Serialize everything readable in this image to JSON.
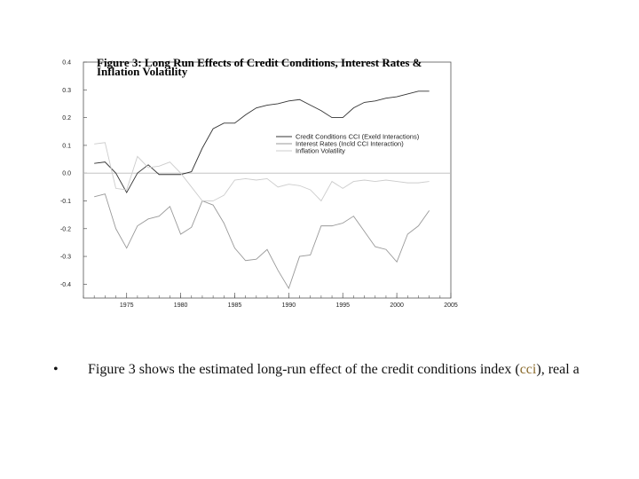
{
  "chart_data": {
    "type": "line",
    "title_lines": [
      "Figure 3: Long Run Effects of Credit Conditions, Interest Rates &",
      "Inflation Volatility"
    ],
    "xlabel": "",
    "ylabel": "",
    "xlim": [
      1971,
      2005
    ],
    "ylim": [
      -0.45,
      0.4
    ],
    "xticks": [
      1975,
      1980,
      1985,
      1990,
      1995,
      2000,
      2005
    ],
    "yticks": [
      0.4,
      0.3,
      0.2,
      0.1,
      0.0,
      -0.1,
      -0.2,
      -0.3,
      -0.4
    ],
    "ytick_labels": [
      "0.4",
      "0.3",
      "0.2",
      "0.1",
      "0.0",
      "-0.1",
      "-0.2",
      "-0.3",
      "-0.4"
    ],
    "zero_line": true,
    "legend_position": "right",
    "x": [
      1972,
      1973,
      1974,
      1975,
      1976,
      1977,
      1978,
      1979,
      1980,
      1981,
      1982,
      1983,
      1984,
      1985,
      1986,
      1987,
      1988,
      1989,
      1990,
      1991,
      1992,
      1993,
      1994,
      1995,
      1996,
      1997,
      1998,
      1999,
      2000,
      2001,
      2002,
      2003
    ],
    "series": [
      {
        "name": "Credit Conditions CCI (Exeld Interactions)",
        "color": "#333333",
        "values": [
          0.035,
          0.04,
          0.0,
          -0.07,
          0.0,
          0.03,
          -0.005,
          -0.005,
          -0.005,
          0.005,
          0.09,
          0.16,
          0.18,
          0.18,
          0.21,
          0.235,
          0.245,
          0.25,
          0.26,
          0.265,
          0.245,
          0.225,
          0.2,
          0.2,
          0.235,
          0.255,
          0.26,
          0.27,
          0.275,
          0.285,
          0.295,
          0.295
        ]
      },
      {
        "name": "Interest Rates (Incld CCI Interaction)",
        "color": "#999999",
        "values": [
          -0.085,
          -0.075,
          -0.2,
          -0.27,
          -0.19,
          -0.165,
          -0.155,
          -0.12,
          -0.22,
          -0.195,
          -0.1,
          -0.115,
          -0.18,
          -0.27,
          -0.315,
          -0.31,
          -0.275,
          -0.35,
          -0.415,
          -0.3,
          -0.295,
          -0.19,
          -0.19,
          -0.18,
          -0.155,
          -0.21,
          -0.265,
          -0.275,
          -0.32,
          -0.22,
          -0.19,
          -0.135
        ]
      },
      {
        "name": "Inflation Volatility",
        "color": "#cccccc",
        "values": [
          0.105,
          0.11,
          -0.055,
          -0.06,
          0.06,
          0.02,
          0.025,
          0.04,
          0.0,
          -0.05,
          -0.1,
          -0.1,
          -0.08,
          -0.025,
          -0.02,
          -0.025,
          -0.02,
          -0.05,
          -0.04,
          -0.045,
          -0.06,
          -0.1,
          -0.03,
          -0.055,
          -0.03,
          -0.025,
          -0.03,
          -0.025,
          -0.03,
          -0.035,
          -0.035,
          -0.03
        ]
      }
    ]
  },
  "bullet": {
    "symbol": "•",
    "text_before": "Figure 3 shows the estimated long-run effect of the credit conditions index (",
    "cci": "cci",
    "text_after": "), real a"
  }
}
